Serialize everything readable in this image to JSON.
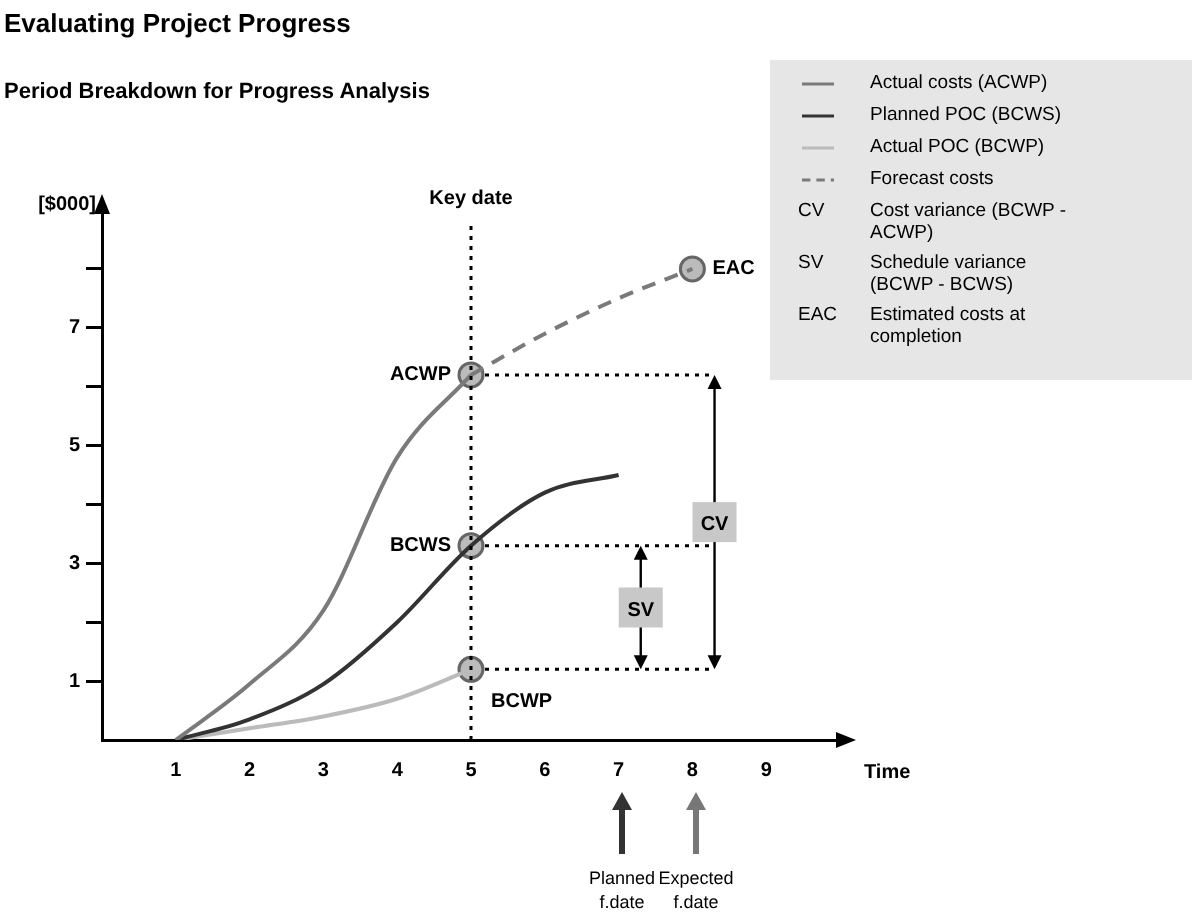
{
  "chart_data": {
    "type": "line",
    "title": "Evaluating Project Progress",
    "subtitle": "Period Breakdown for Progress Analysis",
    "xlabel": "Time",
    "ylabel": "[$000]",
    "xlim": [
      0,
      10
    ],
    "xticks": [
      1,
      2,
      3,
      4,
      5,
      6,
      7,
      8,
      9
    ],
    "ylim": [
      0,
      9
    ],
    "yticks": [
      1,
      {
        "value": 2,
        "label": null
      },
      3,
      {
        "value": 4,
        "label": null
      },
      5,
      {
        "value": 6,
        "label": null
      },
      7,
      {
        "value": 8,
        "label": null
      }
    ],
    "grid": false,
    "legend": "top right",
    "marker": "none",
    "series": [
      {
        "name": "Actual costs (ACWP)",
        "color": "#7a7a7a",
        "x": [
          1,
          2,
          3,
          4,
          5
        ],
        "values": [
          0,
          0.95,
          2.2,
          4.8,
          6.2
        ]
      },
      {
        "name": "Planned POC (BCWS)",
        "color": "#333333",
        "x": [
          1,
          2,
          3,
          4,
          5,
          6,
          7
        ],
        "values": [
          0,
          0.35,
          0.95,
          2.0,
          3.3,
          4.2,
          4.5
        ]
      },
      {
        "name": "Actual POC (BCWP)",
        "color": "#bbbbbb",
        "x": [
          1,
          2,
          3,
          4,
          5
        ],
        "values": [
          0,
          0.2,
          0.4,
          0.7,
          1.2
        ]
      },
      {
        "name": "Forecast costs",
        "color": "#7a7a7a",
        "line_style": "dashed",
        "x": [
          5,
          6,
          7,
          8
        ],
        "values": [
          6.2,
          6.9,
          7.5,
          8
        ]
      },
      {
        "type": "scatter",
        "marker": "circle",
        "color": "#bbbbbb",
        "x": [
          5,
          5,
          5,
          8
        ],
        "values": [
          6.2,
          3.3,
          1.2,
          8
        ]
      }
    ],
    "ref_lines": [
      {
        "axis": "x",
        "value": 5,
        "label": "Key date",
        "line_style": "dotted"
      }
    ],
    "annotations": [
      {
        "text": "ACWP",
        "x": 5,
        "y": 6.2
      },
      {
        "text": "BCWS",
        "x": 5,
        "y": 3.3
      },
      {
        "text": "BCWP",
        "x": 5,
        "y": 1.2
      },
      {
        "text": "EAC",
        "x": 8,
        "y": 8
      },
      {
        "text": "CV",
        "x": 8.3,
        "y": 3.7
      },
      {
        "text": "SV",
        "x": 7.3,
        "y": 2.25
      },
      "Planned f.date",
      "Expected f.date",
      "CV Cost variance (BCWP - ACWP)",
      "SV Schedule variance (BCWP - BCWS)",
      "EAC Estimated costs at completion"
    ]
  }
}
